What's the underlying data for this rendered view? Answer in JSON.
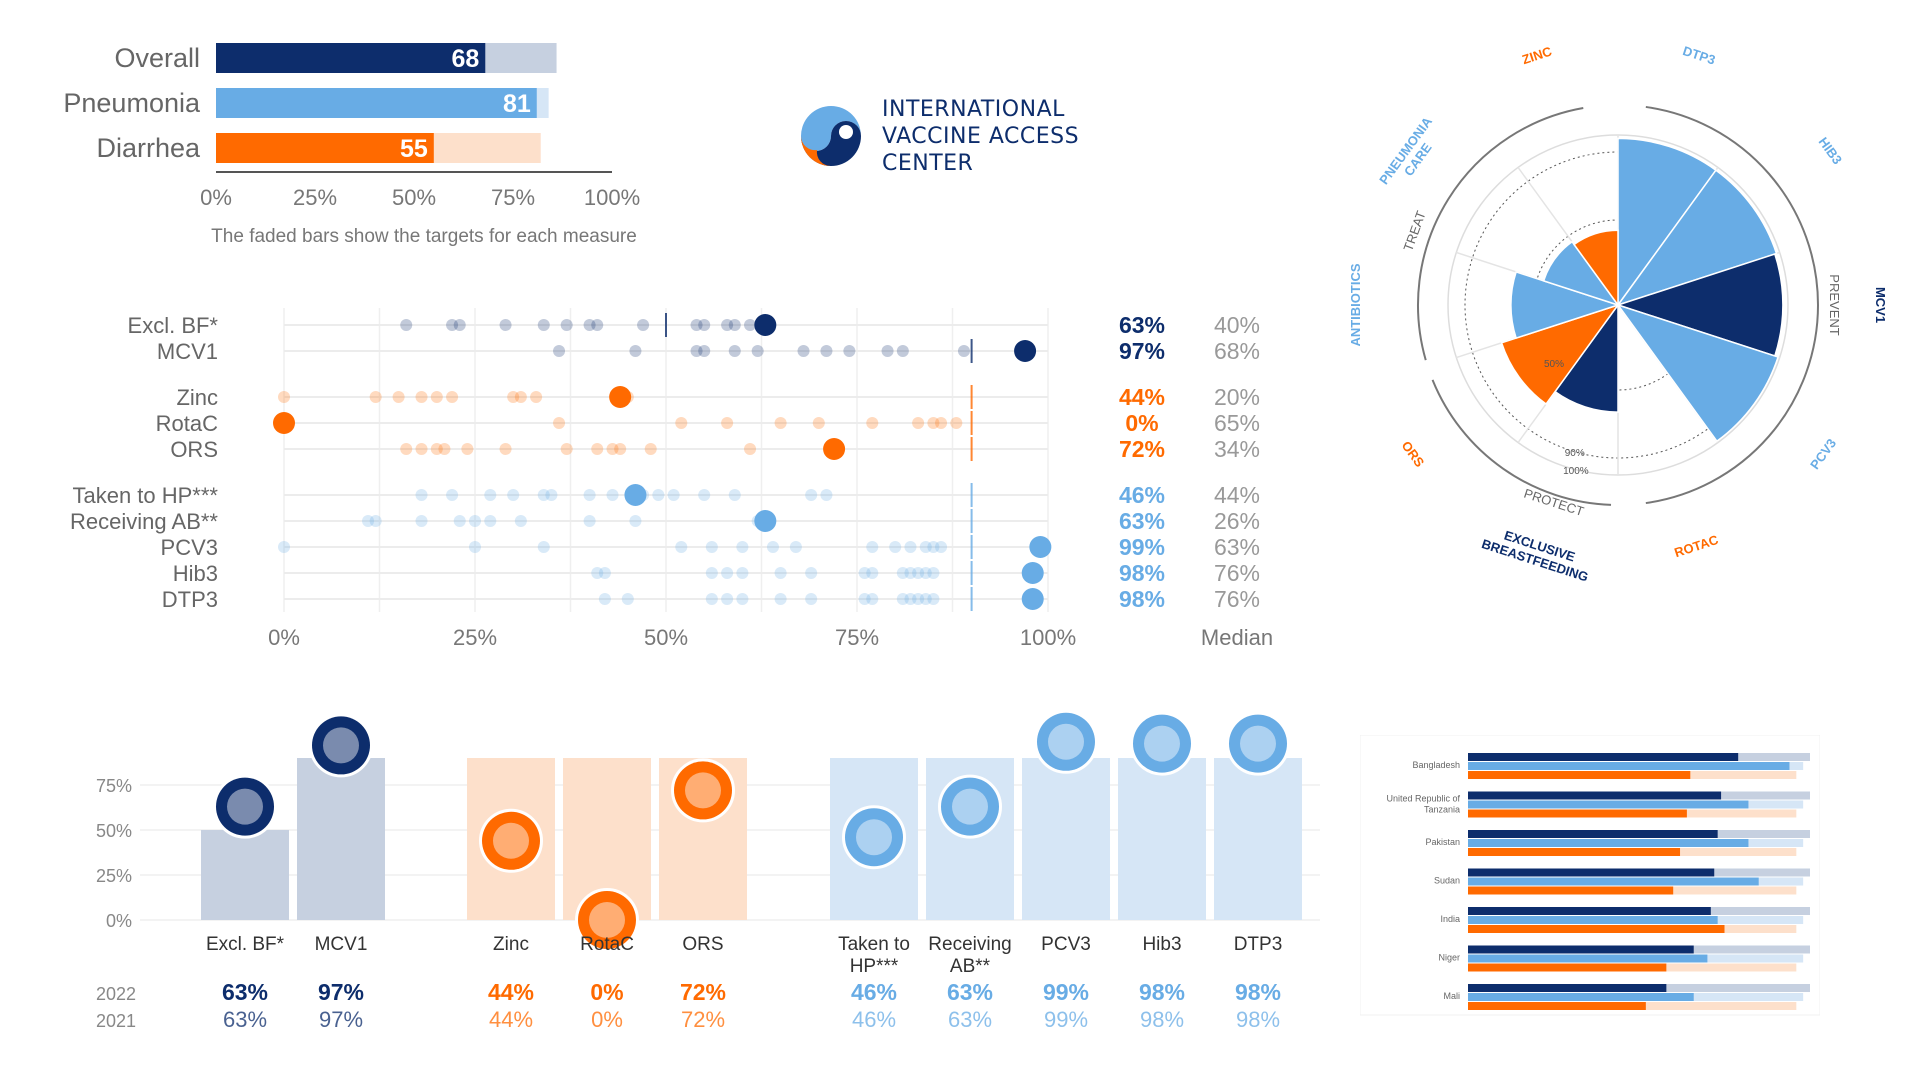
{
  "colors": {
    "navy": "#0d2d6c",
    "blue": "#68ace5",
    "orange": "#ff6a00",
    "navy_faded": "#c6d0e0",
    "blue_faded": "#d6e6f6",
    "orange_faded": "#fde0cb",
    "grey_text": "#777777"
  },
  "logo": {
    "line1": "INTERNATIONAL",
    "line2": "VACCINE ACCESS",
    "line3": "CENTER"
  },
  "chart_data": [
    {
      "id": "scores",
      "type": "bar",
      "categories": [
        "Overall",
        "Pneumonia",
        "Diarrhea"
      ],
      "values": [
        68,
        81,
        55
      ],
      "targets": [
        86,
        84,
        82
      ],
      "value_labels": [
        "68",
        "81",
        "55"
      ],
      "xlim": [
        0,
        100
      ],
      "ticks": [
        "0%",
        "25%",
        "50%",
        "75%",
        "100%"
      ],
      "caption": "The faded bars show the targets for each measure"
    },
    {
      "id": "dotplot",
      "type": "scatter",
      "median_header": "Median",
      "ticks": [
        "0%",
        "25%",
        "50%",
        "75%",
        "100%"
      ],
      "rows": [
        {
          "label": "Excl. BF*",
          "group": "navy",
          "value": 63,
          "value_label": "63%",
          "median_label": "40%",
          "target": 50,
          "others": [
            16,
            22,
            23,
            29,
            34,
            37,
            40,
            41,
            47,
            54,
            55,
            58,
            59,
            61
          ]
        },
        {
          "label": "MCV1",
          "group": "navy",
          "value": 97,
          "value_label": "97%",
          "median_label": "68%",
          "target": 90,
          "others": [
            36,
            46,
            54,
            55,
            59,
            62,
            68,
            71,
            74,
            79,
            81,
            89
          ]
        },
        {
          "label": "Zinc",
          "group": "orange",
          "value": 44,
          "value_label": "44%",
          "median_label": "20%",
          "target": 90,
          "others": [
            0,
            12,
            15,
            18,
            20,
            22,
            30,
            31,
            33,
            45
          ]
        },
        {
          "label": "RotaC",
          "group": "orange",
          "value": 0,
          "value_label": "0%",
          "median_label": "65%",
          "target": 90,
          "others": [
            36,
            52,
            58,
            65,
            70,
            77,
            83,
            85,
            86,
            88
          ]
        },
        {
          "label": "ORS",
          "group": "orange",
          "value": 72,
          "value_label": "72%",
          "median_label": "34%",
          "target": 90,
          "others": [
            16,
            18,
            20,
            21,
            24,
            29,
            37,
            41,
            43,
            44,
            48,
            61
          ]
        },
        {
          "label": "Taken to HP***",
          "group": "blue",
          "value": 46,
          "value_label": "46%",
          "median_label": "44%",
          "target": 90,
          "others": [
            18,
            22,
            27,
            30,
            34,
            35,
            40,
            43,
            47,
            49,
            51,
            55,
            59,
            69,
            71
          ]
        },
        {
          "label": "Receiving AB**",
          "group": "blue",
          "value": 63,
          "value_label": "63%",
          "median_label": "26%",
          "target": 90,
          "others": [
            11,
            12,
            18,
            23,
            25,
            27,
            31,
            40,
            46,
            62
          ]
        },
        {
          "label": "PCV3",
          "group": "blue",
          "value": 99,
          "value_label": "99%",
          "median_label": "63%",
          "target": 90,
          "others": [
            0,
            25,
            34,
            52,
            56,
            60,
            64,
            67,
            77,
            80,
            82,
            84,
            85,
            86
          ]
        },
        {
          "label": "Hib3",
          "group": "blue",
          "value": 98,
          "value_label": "98%",
          "median_label": "76%",
          "target": 90,
          "others": [
            41,
            42,
            56,
            58,
            60,
            65,
            69,
            76,
            77,
            81,
            82,
            83,
            84,
            85
          ]
        },
        {
          "label": "DTP3",
          "group": "blue",
          "value": 98,
          "value_label": "98%",
          "median_label": "76%",
          "target": 90,
          "others": [
            42,
            45,
            56,
            58,
            60,
            65,
            69,
            76,
            77,
            81,
            82,
            83,
            84,
            85
          ]
        }
      ]
    },
    {
      "id": "radial",
      "type": "bar",
      "note": "polar area chart of 2022 values",
      "categories": [
        "DTP3",
        "Hib3",
        "MCV1",
        "PCV3",
        "RotaC",
        "Exclusive Breastfeeding",
        "ORS",
        "Antibiotics",
        "Pneumonia Care",
        "Zinc"
      ],
      "values": [
        98,
        98,
        97,
        99,
        0,
        63,
        72,
        63,
        46,
        44
      ],
      "category_labels": [
        "DTP3",
        "HIB3",
        "MCV1",
        "PCV3",
        "ROTAC",
        "EXCLUSIVE",
        "ORS",
        "ANTIBIOTICS",
        "PNEUMONIA",
        "ZINC"
      ],
      "category_labels_line2": [
        "",
        "",
        "",
        "",
        "",
        "BREASTFEEDING",
        "",
        "",
        "CARE",
        ""
      ],
      "groups": [
        "PREVENT",
        "PROTECT",
        "TREAT"
      ],
      "ring_labels": [
        "50%",
        "90%",
        "100%"
      ]
    },
    {
      "id": "yearly",
      "type": "bar",
      "ylim": [
        0,
        100
      ],
      "ticks": [
        "0%",
        "25%",
        "50%",
        "75%"
      ],
      "year_labels": [
        "2022",
        "2021"
      ],
      "categories": [
        "Excl. BF*",
        "MCV1",
        "Zinc",
        "RotaC",
        "ORS",
        "Taken to HP***",
        "Receiving AB**",
        "PCV3",
        "Hib3",
        "DTP3"
      ],
      "category_lines": [
        [
          "Excl. BF*"
        ],
        [
          "MCV1"
        ],
        [
          "Zinc"
        ],
        [
          "RotaC"
        ],
        [
          "ORS"
        ],
        [
          "Taken to",
          "HP***"
        ],
        [
          "Receiving",
          "AB**"
        ],
        [
          "PCV3"
        ],
        [
          "Hib3"
        ],
        [
          "DTP3"
        ]
      ],
      "groups": [
        "navy",
        "navy",
        "orange",
        "orange",
        "orange",
        "blue",
        "blue",
        "blue",
        "blue",
        "blue"
      ],
      "targets": [
        50,
        90,
        90,
        90,
        90,
        90,
        90,
        90,
        90,
        90
      ],
      "values_2022": [
        63,
        97,
        44,
        0,
        72,
        46,
        63,
        99,
        98,
        98
      ],
      "values_2021": [
        63,
        97,
        44,
        0,
        72,
        46,
        63,
        99,
        98,
        98
      ],
      "labels_2022": [
        "63%",
        "97%",
        "44%",
        "0%",
        "72%",
        "46%",
        "63%",
        "99%",
        "98%",
        "98%"
      ],
      "labels_2021": [
        "63%",
        "97%",
        "44%",
        "0%",
        "72%",
        "46%",
        "63%",
        "99%",
        "98%",
        "98%"
      ]
    },
    {
      "id": "countries",
      "type": "bar",
      "categories": [
        "Bangladesh",
        "United Republic of Tanzania",
        "Pakistan",
        "Sudan",
        "India",
        "Niger",
        "Mali"
      ],
      "category_lines": [
        [
          "Bangladesh"
        ],
        [
          "United Republic of",
          "Tanzania"
        ],
        [
          "Pakistan"
        ],
        [
          "Sudan"
        ],
        [
          "India"
        ],
        [
          "Niger"
        ],
        [
          "Mali"
        ]
      ],
      "series": [
        {
          "values": [
            79,
            74,
            73,
            72,
            71,
            66,
            58
          ],
          "targets": [
            100,
            100,
            100,
            100,
            100,
            100,
            100
          ]
        },
        {
          "values": [
            94,
            82,
            82,
            85,
            73,
            70,
            66
          ],
          "targets": [
            98,
            98,
            98,
            98,
            98,
            98,
            98
          ]
        },
        {
          "values": [
            65,
            64,
            62,
            60,
            75,
            58,
            52
          ],
          "targets": [
            96,
            96,
            96,
            96,
            96,
            96,
            96
          ]
        }
      ],
      "xlim": [
        0,
        100
      ]
    }
  ]
}
